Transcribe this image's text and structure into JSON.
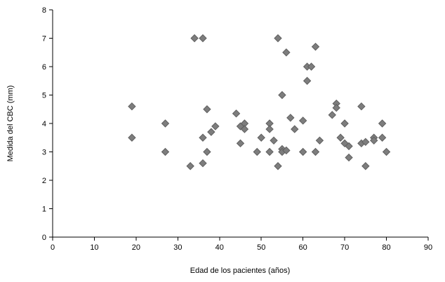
{
  "chart_data": {
    "type": "scatter",
    "title": "",
    "xlabel": "Edad de los pacientes (años)",
    "ylabel": "Medida del CBC (mm)",
    "xlim": [
      0,
      90
    ],
    "ylim": [
      0,
      8
    ],
    "xticks": [
      0,
      10,
      20,
      30,
      40,
      50,
      60,
      70,
      80,
      90
    ],
    "yticks": [
      0,
      1,
      2,
      3,
      4,
      5,
      6,
      7,
      8
    ],
    "grid": false,
    "legend": null,
    "marker": {
      "shape": "diamond",
      "size": 10,
      "color": "#7d7d7d",
      "border": "#606060"
    },
    "points": [
      [
        19,
        4.6
      ],
      [
        19,
        3.5
      ],
      [
        27,
        4.0
      ],
      [
        27,
        3.0
      ],
      [
        33,
        2.5
      ],
      [
        34,
        7.0
      ],
      [
        36,
        7.0
      ],
      [
        36,
        3.5
      ],
      [
        36,
        2.6
      ],
      [
        37,
        4.5
      ],
      [
        37,
        3.0
      ],
      [
        38,
        3.7
      ],
      [
        39,
        3.9
      ],
      [
        44,
        4.35
      ],
      [
        45,
        3.9
      ],
      [
        45,
        3.3
      ],
      [
        46,
        4.0
      ],
      [
        46,
        3.8
      ],
      [
        49,
        3.0
      ],
      [
        50,
        3.5
      ],
      [
        52,
        4.0
      ],
      [
        52,
        3.8
      ],
      [
        52,
        3.0
      ],
      [
        53,
        3.4
      ],
      [
        54,
        7.0
      ],
      [
        54,
        2.5
      ],
      [
        55,
        5.0
      ],
      [
        55,
        3.1
      ],
      [
        55,
        3.0
      ],
      [
        56,
        6.5
      ],
      [
        56,
        3.05
      ],
      [
        57,
        4.2
      ],
      [
        58,
        3.8
      ],
      [
        60,
        3.0
      ],
      [
        60,
        4.1
      ],
      [
        61,
        6.0
      ],
      [
        61,
        5.5
      ],
      [
        62,
        6.0
      ],
      [
        63,
        6.7
      ],
      [
        63,
        3.0
      ],
      [
        64,
        3.4
      ],
      [
        67,
        4.3
      ],
      [
        68,
        4.7
      ],
      [
        68,
        4.55
      ],
      [
        69,
        3.5
      ],
      [
        70,
        4.0
      ],
      [
        70,
        3.3
      ],
      [
        71,
        3.2
      ],
      [
        71,
        2.8
      ],
      [
        74,
        4.6
      ],
      [
        74,
        3.3
      ],
      [
        75,
        3.35
      ],
      [
        75,
        2.5
      ],
      [
        77,
        3.5
      ],
      [
        77,
        3.4
      ],
      [
        79,
        4.0
      ],
      [
        79,
        3.5
      ],
      [
        80,
        3.0
      ]
    ]
  },
  "colors": {
    "background": "#ffffff",
    "axis": "#000000",
    "tick_text": "#000000"
  }
}
